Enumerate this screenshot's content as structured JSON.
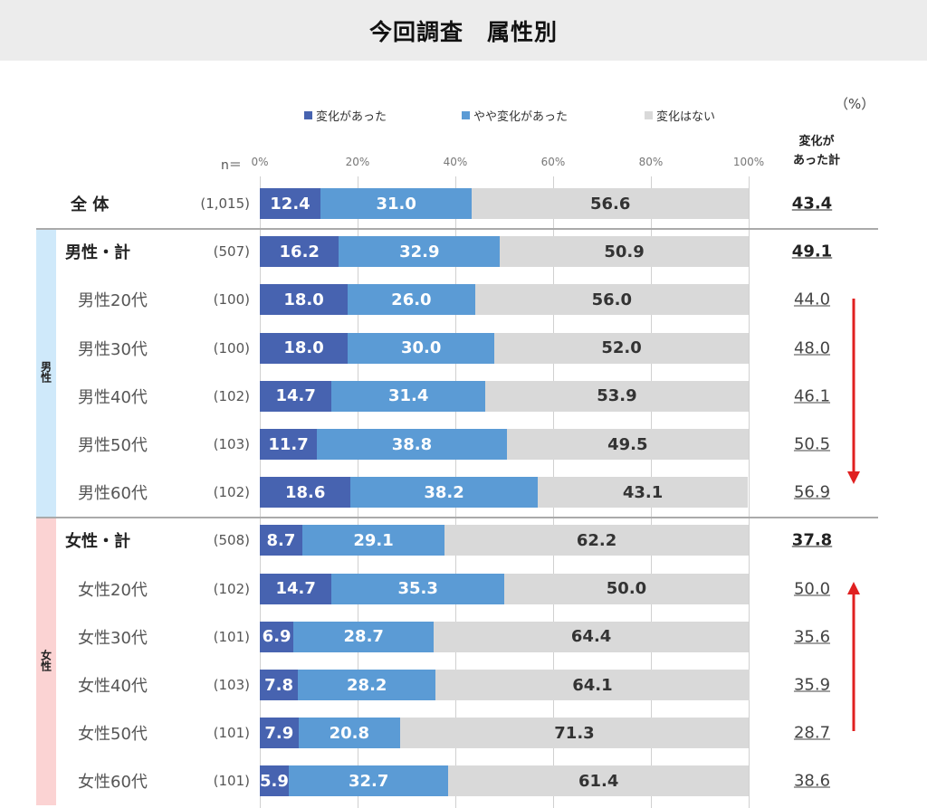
{
  "title": "今回調査　属性別",
  "unit": "（%）",
  "n_label": "n＝",
  "total_header": [
    "変化が",
    "あった計"
  ],
  "group_labels": {
    "male": "男性",
    "female": "女性"
  },
  "colors": {
    "changed": "#4763b0",
    "somewhat": "#5b9bd5",
    "none": "#d9d9d9",
    "arrow": "#e02020",
    "male_band": "#cfe9fa",
    "female_band": "#fbd3d3"
  },
  "chart_data": {
    "type": "bar",
    "orientation": "horizontal",
    "stacked": "100%",
    "xlim": [
      0,
      100
    ],
    "x_ticks": [
      "0%",
      "20%",
      "40%",
      "60%",
      "80%",
      "100%"
    ],
    "legend_position": "top",
    "grid": true,
    "series": [
      {
        "name": "変化があった",
        "color": "#4763b0"
      },
      {
        "name": "やや変化があった",
        "color": "#5b9bd5"
      },
      {
        "name": "変化はない",
        "color": "#d9d9d9"
      }
    ],
    "rows": [
      {
        "label": "全 体",
        "n": "(1,015)",
        "values": [
          12.4,
          31.0,
          56.6
        ],
        "total": "43.4",
        "bold": true
      },
      {
        "label": "男性・計",
        "n": "(507)",
        "values": [
          16.2,
          32.9,
          50.9
        ],
        "total": "49.1",
        "bold": true
      },
      {
        "label": "男性20代",
        "n": "(100)",
        "values": [
          18.0,
          26.0,
          56.0
        ],
        "total": "44.0"
      },
      {
        "label": "男性30代",
        "n": "(100)",
        "values": [
          18.0,
          30.0,
          52.0
        ],
        "total": "48.0"
      },
      {
        "label": "男性40代",
        "n": "(102)",
        "values": [
          14.7,
          31.4,
          53.9
        ],
        "total": "46.1"
      },
      {
        "label": "男性50代",
        "n": "(103)",
        "values": [
          11.7,
          38.8,
          49.5
        ],
        "total": "50.5"
      },
      {
        "label": "男性60代",
        "n": "(102)",
        "values": [
          18.6,
          38.2,
          43.1
        ],
        "total": "56.9"
      },
      {
        "label": "女性・計",
        "n": "(508)",
        "values": [
          8.7,
          29.1,
          62.2
        ],
        "total": "37.8",
        "bold": true
      },
      {
        "label": "女性20代",
        "n": "(102)",
        "values": [
          14.7,
          35.3,
          50.0
        ],
        "total": "50.0"
      },
      {
        "label": "女性30代",
        "n": "(101)",
        "values": [
          6.9,
          28.7,
          64.4
        ],
        "total": "35.6"
      },
      {
        "label": "女性40代",
        "n": "(103)",
        "values": [
          7.8,
          28.2,
          64.1
        ],
        "total": "35.9"
      },
      {
        "label": "女性50代",
        "n": "(101)",
        "values": [
          7.9,
          20.8,
          71.3
        ],
        "total": "28.7"
      },
      {
        "label": "女性60代",
        "n": "(101)",
        "values": [
          5.9,
          32.7,
          61.4
        ],
        "total": "38.6"
      }
    ],
    "annotations": [
      {
        "type": "arrow",
        "direction": "down",
        "from_row": "男性20代",
        "to_row": "男性60代"
      },
      {
        "type": "arrow",
        "direction": "up",
        "from_row": "女性50代",
        "to_row": "女性20代"
      }
    ]
  }
}
